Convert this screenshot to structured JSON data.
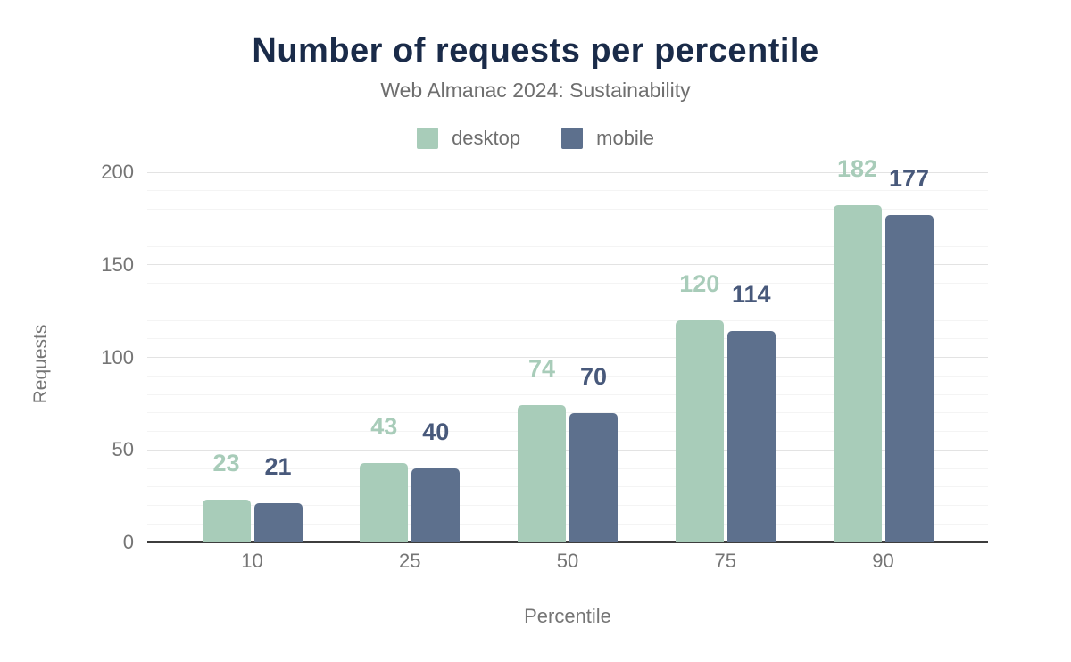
{
  "title": "Number of requests per percentile",
  "subtitle": "Web Almanac 2024: Sustainability",
  "chart_data": {
    "type": "bar",
    "categories": [
      "10",
      "25",
      "50",
      "75",
      "90"
    ],
    "series": [
      {
        "name": "desktop",
        "color": "#a8ccb9",
        "label_color": "#a8ccb9",
        "values": [
          23,
          43,
          74,
          120,
          182
        ]
      },
      {
        "name": "mobile",
        "color": "#5d708d",
        "label_color": "#48597b",
        "values": [
          21,
          40,
          70,
          114,
          177
        ]
      }
    ],
    "title": "Number of requests per percentile",
    "subtitle": "Web Almanac 2024: Sustainability",
    "xlabel": "Percentile",
    "ylabel": "Requests",
    "ylim": [
      0,
      200
    ],
    "yticks": [
      0,
      50,
      100,
      150,
      200
    ],
    "minor_grid_step": 10,
    "grid": true,
    "legend_position": "top"
  },
  "colors": {
    "background": "#ffffff",
    "title": "#1a2b49",
    "subtitle": "#6e6e6e",
    "tick_label": "#757575",
    "axis_line": "#3d3d3d",
    "grid_major": "#e3e3e3",
    "grid_minor": "#f4f4f4"
  }
}
